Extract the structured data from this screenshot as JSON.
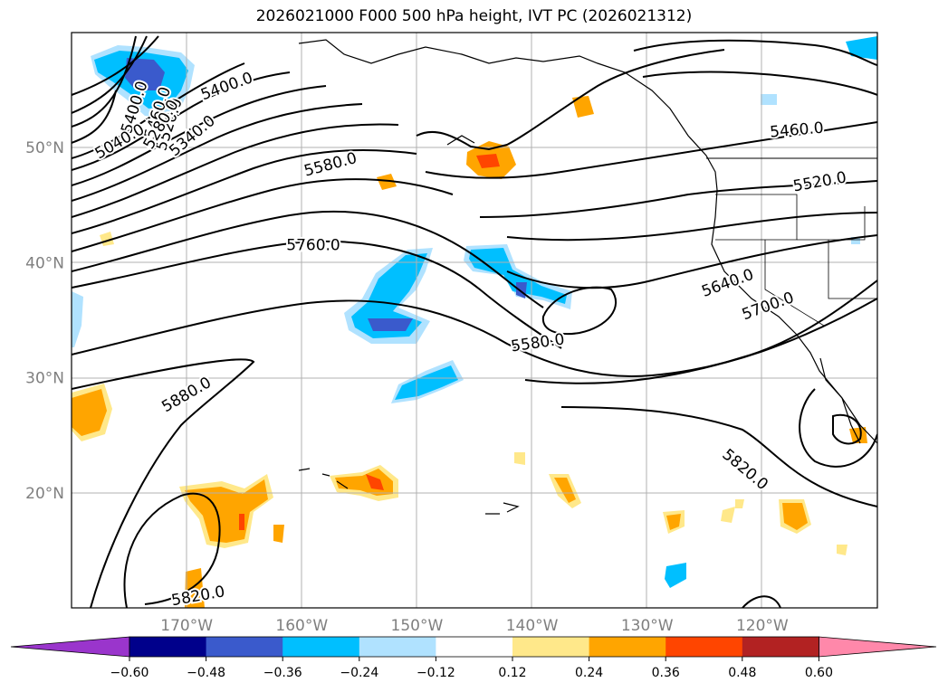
{
  "title": "2026021000 F000 500 hPa height, IVT PC (2026021312)",
  "map": {
    "lat_labels": [
      {
        "lat": 50,
        "label": "50°N"
      },
      {
        "lat": 40,
        "label": "40°N"
      },
      {
        "lat": 30,
        "label": "30°N"
      },
      {
        "lat": 20,
        "label": "20°N"
      }
    ],
    "lon_labels": [
      {
        "lon": -170,
        "label": "170°W"
      },
      {
        "lon": -160,
        "label": "160°W"
      },
      {
        "lon": -150,
        "label": "150°W"
      },
      {
        "lon": -140,
        "label": "140°W"
      },
      {
        "lon": -130,
        "label": "130°W"
      },
      {
        "lon": -120,
        "label": "120°W"
      }
    ],
    "extent": {
      "lon_min": -180,
      "lon_max": -110,
      "lat_min": 10,
      "lat_max": 60
    },
    "gridline_color": "#b0b0b0"
  },
  "contour_labels": [
    {
      "text": "5400.0",
      "lon": -174.5,
      "lat": 53.5
    },
    {
      "text": "5460.0",
      "lon": -172.5,
      "lat": 53.0
    },
    {
      "text": "5520.0",
      "lon": -171.5,
      "lat": 52.0
    },
    {
      "text": "5280.0",
      "lon": -172.2,
      "lat": 52.0
    },
    {
      "text": "5340.0",
      "lon": -169.5,
      "lat": 51.0
    },
    {
      "text": "5040.0",
      "lon": -175.8,
      "lat": 50.5
    },
    {
      "text": "5400.0",
      "lon": -166.5,
      "lat": 55.3
    },
    {
      "text": "5580.0",
      "lon": -157.5,
      "lat": 48.5
    },
    {
      "text": "5760.0",
      "lon": -159.0,
      "lat": 41.5
    },
    {
      "text": "5880.0",
      "lon": -170.0,
      "lat": 28.5
    },
    {
      "text": "5820.0",
      "lon": -169.0,
      "lat": 11.0
    },
    {
      "text": "5580.0",
      "lon": -139.5,
      "lat": 33.0
    },
    {
      "text": "5460.0",
      "lon": -117.0,
      "lat": 51.5
    },
    {
      "text": "5520.0",
      "lon": -115.0,
      "lat": 47.0
    },
    {
      "text": "5640.0",
      "lon": -123.0,
      "lat": 38.2
    },
    {
      "text": "5700.0",
      "lon": -119.5,
      "lat": 36.2
    },
    {
      "text": "5820.0",
      "lon": -121.5,
      "lat": 22.0
    }
  ],
  "colorbar": {
    "levels": [
      -0.6,
      -0.48,
      -0.36,
      -0.24,
      -0.12,
      0.12,
      0.24,
      0.36,
      0.48,
      0.6
    ],
    "tick_labels": [
      "−0.60",
      "−0.48",
      "−0.36",
      "−0.24",
      "−0.12",
      "0.12",
      "0.24",
      "0.36",
      "0.48",
      "0.60"
    ],
    "colors": [
      "#9a35cc",
      "#00008b",
      "#3a5acc",
      "#00bfff",
      "#b0e2ff",
      "#ffffff",
      "#ffe88a",
      "#ffa500",
      "#ff4500",
      "#b22222",
      "#ff88aa"
    ]
  }
}
